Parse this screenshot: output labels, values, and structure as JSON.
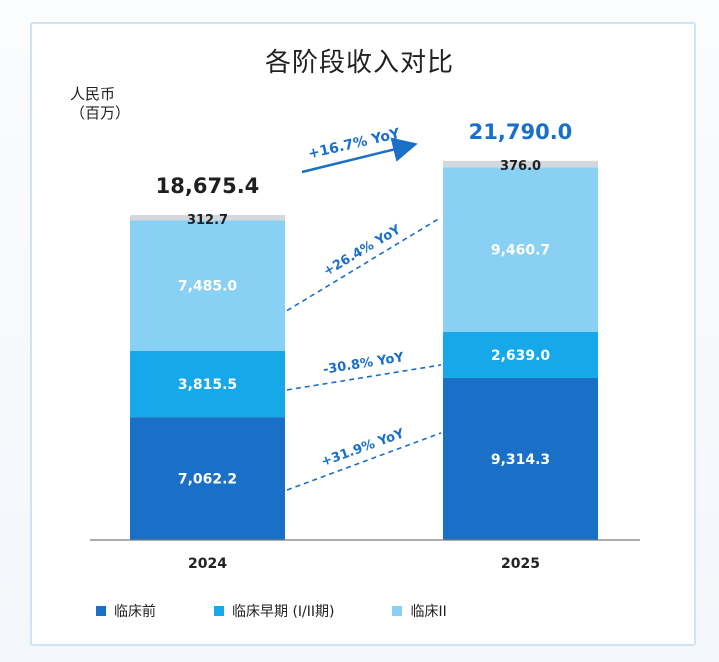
{
  "chart_data": {
    "type": "bar",
    "stacked": true,
    "title": "各阶段收入对比",
    "unit_label": [
      "人民币",
      "（百万）"
    ],
    "categories": [
      "2024",
      "2025"
    ],
    "totals": [
      "18,675.4",
      "21,790.0"
    ],
    "series": [
      {
        "name": "临床前",
        "values": [
          7062.2,
          9314.3
        ],
        "labels": [
          "7,062.2",
          "9,314.3"
        ],
        "color": "#1a70c6"
      },
      {
        "name": "临床早期 (I/II期)",
        "values": [
          3815.5,
          2639.0
        ],
        "labels": [
          "3,815.5",
          "2,639.0"
        ],
        "color": "#16a8e8"
      },
      {
        "name": "临床II",
        "values": [
          7485.0,
          9460.7
        ],
        "labels": [
          "7,485.0",
          "9,460.7"
        ],
        "color": "#89d0f5"
      },
      {
        "values": [
          312.7,
          376.0
        ],
        "labels": [
          "312.7",
          "376.0"
        ],
        "color": "#d4d8dc"
      }
    ],
    "annotations": {
      "total_yoy": "+16.7% YoY",
      "series_yoy": [
        "+31.9% YoY",
        "-30.8% YoY",
        "+26.4% YoY"
      ]
    },
    "accent_color": "#1a6fc9",
    "ylim": [
      0,
      24000
    ]
  }
}
